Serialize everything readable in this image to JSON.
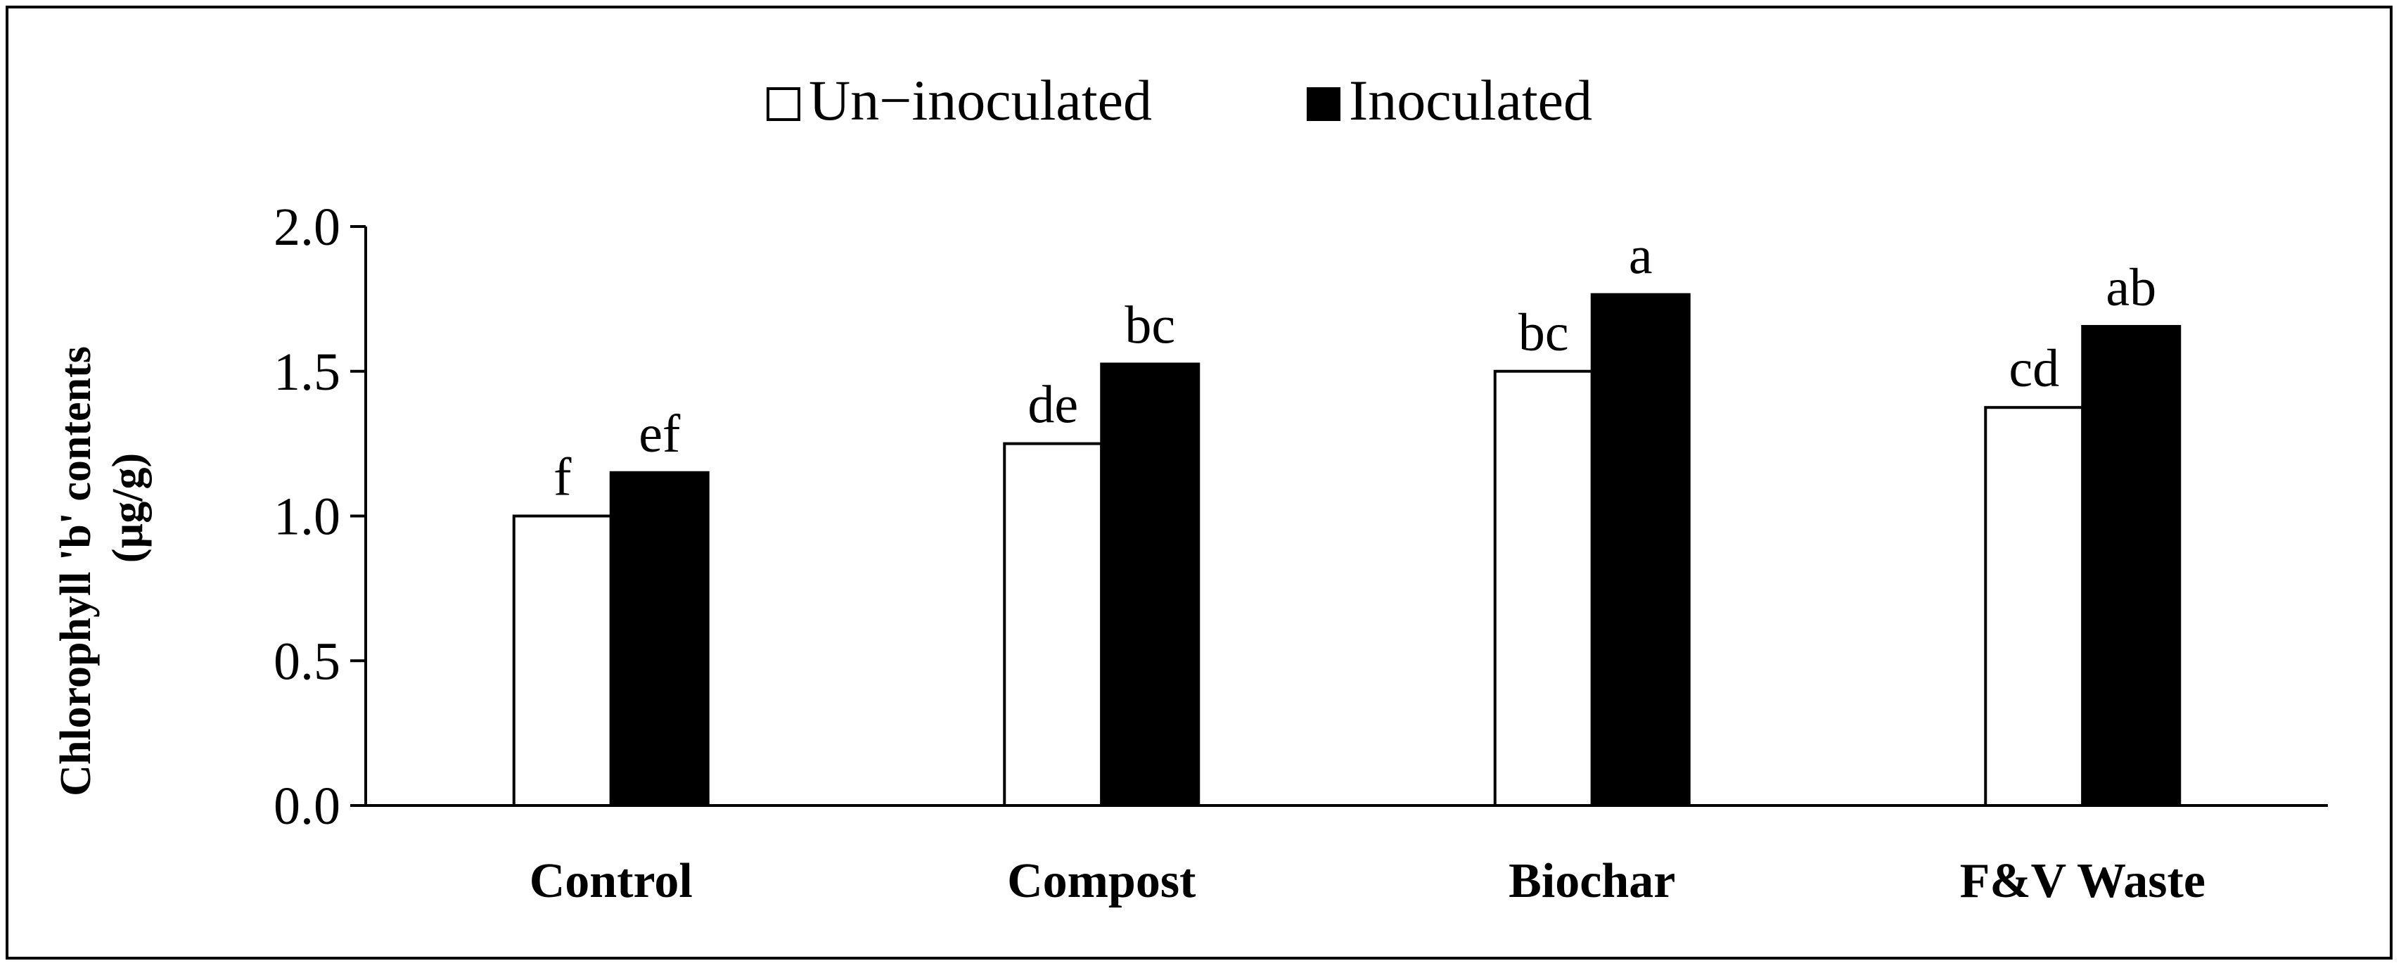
{
  "chart_data": {
    "type": "bar",
    "title": "",
    "xlabel": "",
    "ylabel": "Chlorophyll 'b' contents",
    "ylabel_unit": "(µg/g)",
    "ylim": [
      0,
      2.0
    ],
    "yticks": [
      "0.0",
      "0.5",
      "1.0",
      "1.5",
      "2.0"
    ],
    "categories": [
      "Control",
      "Compost",
      "Biochar",
      "F&V Waste"
    ],
    "series": [
      {
        "name": "Un−inoculated",
        "fill": "#ffffff",
        "values": [
          1.0,
          1.25,
          1.5,
          1.375
        ],
        "labels": [
          "f",
          "de",
          "bc",
          "cd"
        ]
      },
      {
        "name": "Inoculated",
        "fill": "#000000",
        "values": [
          1.15,
          1.525,
          1.765,
          1.655
        ],
        "labels": [
          "ef",
          "bc",
          "a",
          "ab"
        ]
      }
    ],
    "legend_position": "top-center",
    "grid": false
  }
}
